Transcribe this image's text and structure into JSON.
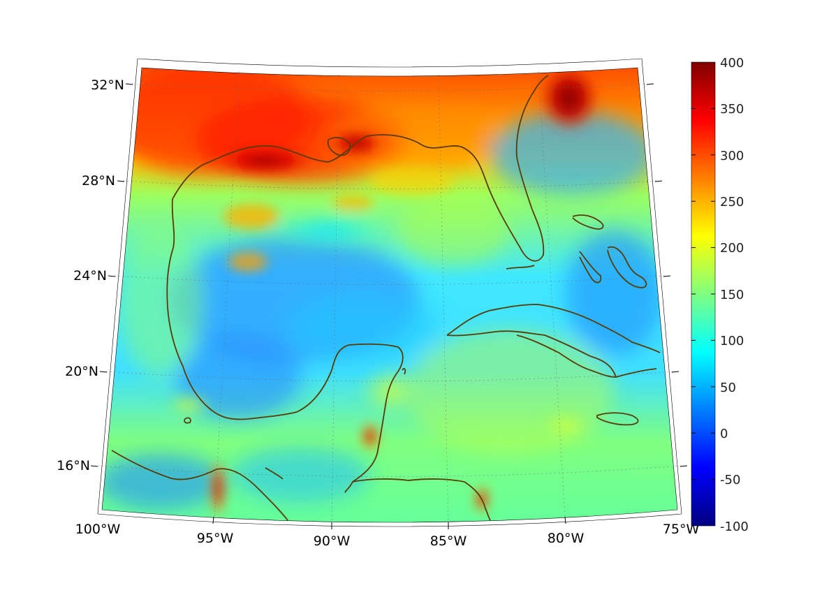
{
  "map": {
    "projection": "conic",
    "lon_range": [
      -100,
      -75
    ],
    "lat_range": [
      14,
      33
    ],
    "grid": true,
    "coastline_color": "#5a3a05",
    "lon_labels": [
      "100°W",
      "95°W",
      "90°W",
      "85°W",
      "80°W",
      "75°W"
    ],
    "lat_labels": [
      "32°N",
      "28°N",
      "24°N",
      "20°N",
      "16°N"
    ]
  },
  "colorbar": {
    "colormap": "jet",
    "range": [
      -100,
      400
    ],
    "placement": "right",
    "tick_labels": [
      "400",
      "350",
      "300",
      "250",
      "200",
      "150",
      "100",
      "50",
      "0",
      "-50",
      "-100"
    ]
  }
}
